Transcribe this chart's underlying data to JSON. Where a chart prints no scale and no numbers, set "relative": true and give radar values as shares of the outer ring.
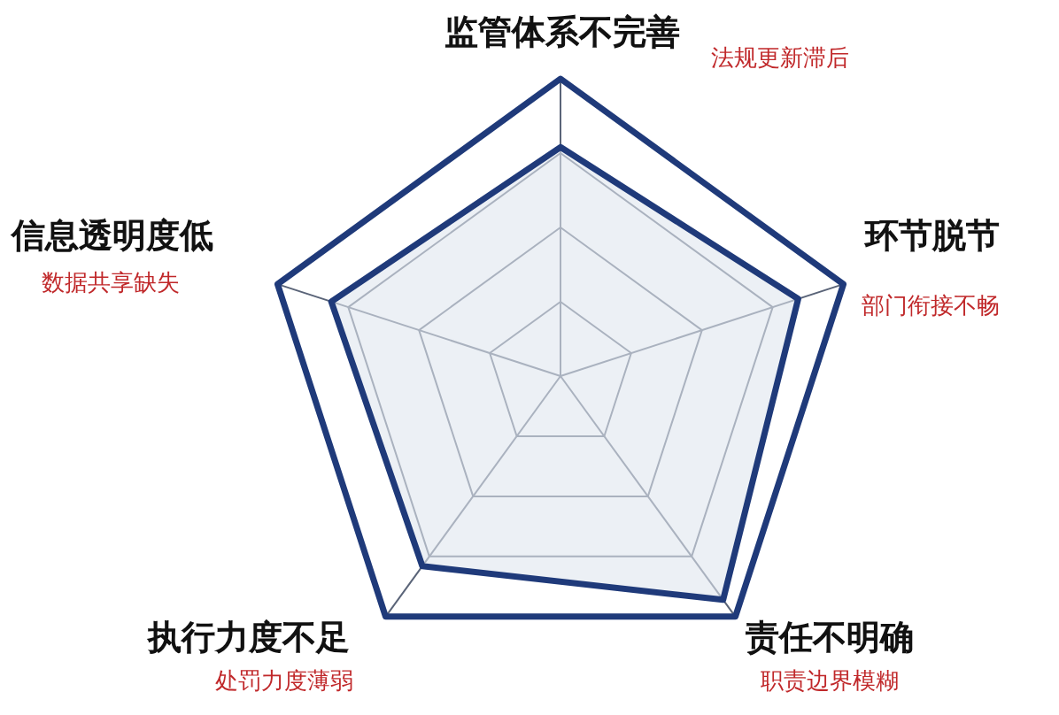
{
  "chart_data": {
    "type": "radar",
    "relative": true,
    "grid": true,
    "categories": [
      "监管体系不完善",
      "环节脱节",
      "责任不明确",
      "执行力度不足",
      "信息透明度低"
    ],
    "annotations": [
      "法规更新滞后",
      "部门衔接不畅",
      "职责边界模糊",
      "处罚力度薄弱",
      "数据共享缺失"
    ],
    "series": [
      {
        "color": "#1f3a7a",
        "values": [
          0.77,
          0.84,
          0.93,
          0.79,
          0.81
        ]
      }
    ]
  }
}
